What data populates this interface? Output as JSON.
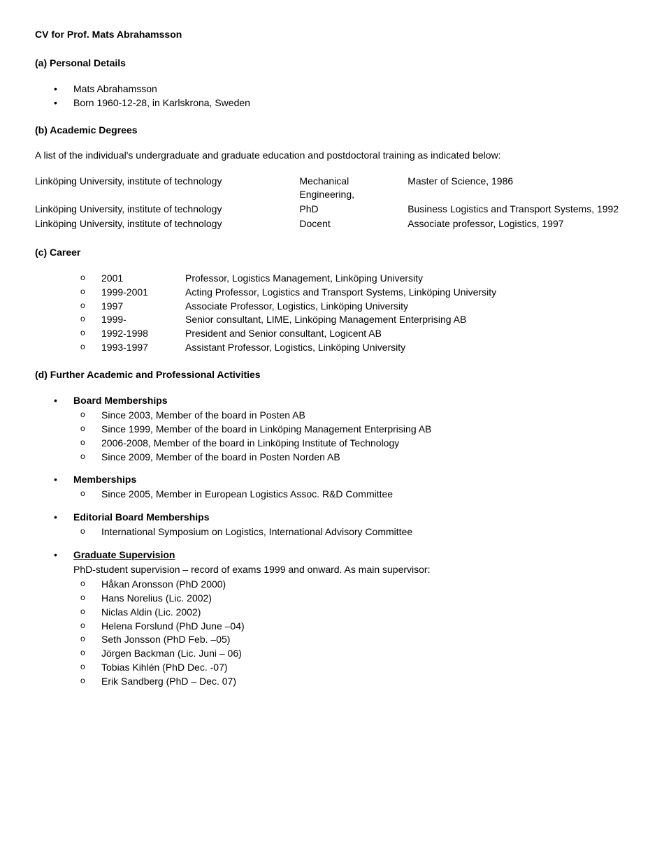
{
  "title": "CV for Prof. Mats Abrahamsson",
  "sections": {
    "a": {
      "heading": "(a) Personal Details",
      "items": [
        "Mats Abrahamsson",
        "Born 1960-12-28, in Karlskrona, Sweden"
      ]
    },
    "b": {
      "heading": "(b) Academic Degrees",
      "intro": "A list of the individual's undergraduate and graduate education and postdoctoral training as indicated below:",
      "rows": [
        {
          "inst": "Linköping University, institute of technology",
          "deg": "Mechanical Engineering,",
          "res": "Master of Science, 1986"
        },
        {
          "inst": "Linköping University, institute of technology",
          "deg": "PhD",
          "res": "Business Logistics and Transport Systems, 1992"
        },
        {
          "inst": "Linköping University, institute of technology",
          "deg": "Docent",
          "res": "Associate professor, Logistics, 1997"
        }
      ]
    },
    "c": {
      "heading": "(c) Career",
      "items": [
        {
          "year": "2001",
          "desc": "Professor, Logistics Management, Linköping University"
        },
        {
          "year": "1999-2001",
          "desc": "Acting Professor, Logistics and Transport Systems, Linköping University"
        },
        {
          "year": "1997",
          "desc": "Associate Professor, Logistics, Linköping University"
        },
        {
          "year": "1999-",
          "desc": "Senior consultant, LIME, Linköping Management Enterprising AB"
        },
        {
          "year": "1992-1998",
          "desc": "President and Senior consultant, Logicent AB"
        },
        {
          "year": "1993-1997",
          "desc": "Assistant Professor, Logistics, Linköping University"
        }
      ]
    },
    "d": {
      "heading": "(d) Further Academic and Professional Activities",
      "board": {
        "heading": "Board Memberships",
        "items": [
          "Since 2003, Member of the board in Posten AB",
          "Since 1999, Member of the board in Linköping Management Enterprising AB",
          "2006-2008, Member of the board in Linköping Institute of Technology",
          "Since 2009, Member of the board in Posten Norden AB"
        ]
      },
      "memberships": {
        "heading": "Memberships",
        "items": [
          "Since 2005, Member in European Logistics Assoc. R&D Committee"
        ]
      },
      "editorial": {
        "heading": "Editorial Board Memberships",
        "items": [
          "International Symposium on Logistics, International Advisory Committee"
        ]
      },
      "supervision": {
        "heading": "Graduate Supervision",
        "intro": "PhD-student supervision – record of exams 1999 and onward. As main supervisor:",
        "items": [
          "Håkan Aronsson (PhD 2000)",
          "Hans Norelius (Lic. 2002)",
          "Niclas Aldin (Lic. 2002)",
          "Helena Forslund (PhD June –04)",
          "Seth Jonsson (PhD Feb. –05)",
          "Jörgen Backman (Lic. Juni – 06)",
          "Tobias Kihlén (PhD Dec. -07)",
          "Erik Sandberg (PhD – Dec. 07)"
        ]
      }
    }
  }
}
